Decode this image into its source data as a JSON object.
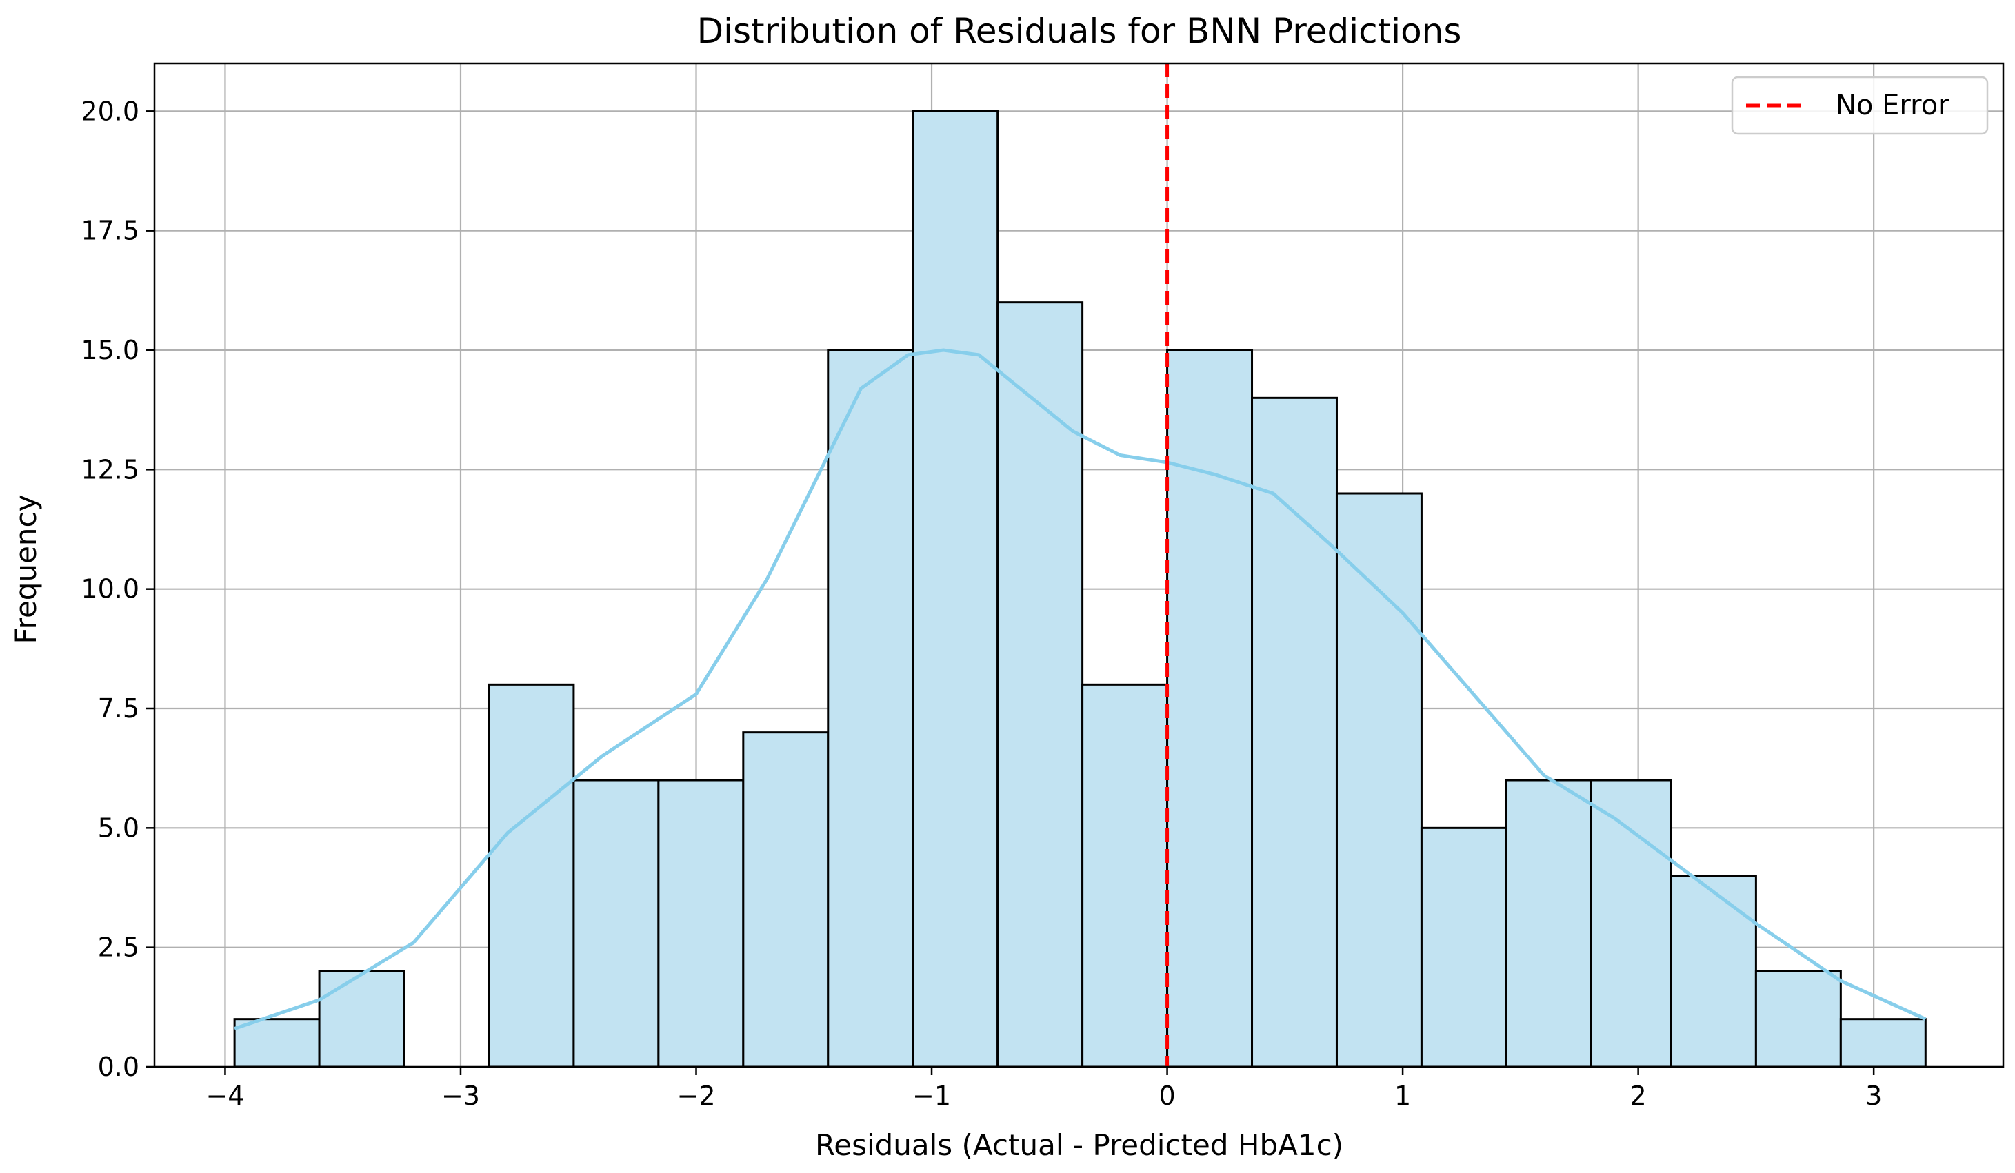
{
  "chart_data": {
    "type": "bar",
    "title": "Distribution of Residuals for BNN Predictions",
    "xlabel": "Residuals (Actual - Predicted HbA1c)",
    "ylabel": "Frequency",
    "xlim": [
      -4.3,
      3.55
    ],
    "ylim": [
      0,
      21.0
    ],
    "grid": true,
    "legend_position": "top-right",
    "xticks": [
      -4,
      -3,
      -2,
      -1,
      0,
      1,
      2,
      3
    ],
    "xtick_labels": [
      "−4",
      "−3",
      "−2",
      "−1",
      "0",
      "1",
      "2",
      "3"
    ],
    "yticks": [
      0,
      2.5,
      5,
      7.5,
      10,
      12.5,
      15,
      17.5,
      20
    ],
    "ytick_labels": [
      "0.0",
      "2.5",
      "5.0",
      "7.5",
      "10.0",
      "12.5",
      "15.0",
      "17.5",
      "20.0"
    ],
    "bin_edges": [
      -3.96,
      -3.6,
      -3.24,
      -2.88,
      -2.52,
      -2.16,
      -1.8,
      -1.44,
      -1.08,
      -0.72,
      -0.36,
      0.0,
      0.36,
      0.72,
      1.08,
      1.44,
      1.8,
      2.14,
      2.5,
      2.86,
      3.22
    ],
    "counts": [
      1,
      2,
      0,
      8,
      6,
      6,
      7,
      15,
      20,
      16,
      8,
      15,
      14,
      12,
      5,
      6,
      6,
      4,
      2,
      1
    ],
    "kde": {
      "x": [
        -3.96,
        -3.6,
        -3.2,
        -2.8,
        -2.4,
        -2.0,
        -1.7,
        -1.5,
        -1.3,
        -1.1,
        -0.95,
        -0.8,
        -0.6,
        -0.4,
        -0.2,
        0.0,
        0.2,
        0.45,
        0.7,
        1.0,
        1.3,
        1.6,
        1.9,
        2.2,
        2.5,
        2.86,
        3.22
      ],
      "y": [
        0.8,
        1.4,
        2.6,
        4.9,
        6.5,
        7.8,
        10.2,
        12.2,
        14.2,
        14.9,
        15.0,
        14.9,
        14.1,
        13.3,
        12.8,
        12.65,
        12.4,
        12.0,
        10.9,
        9.5,
        7.8,
        6.1,
        5.2,
        4.1,
        3.0,
        1.8,
        1.0
      ]
    },
    "series": [
      {
        "name": "No Error",
        "x_value": 0,
        "color": "#ff0000",
        "style": "dashed"
      }
    ],
    "colors": {
      "bar_fill": "#c2e3f2",
      "bar_edge": "#000000",
      "kde_line": "#87ceeb",
      "reference_line": "#ff0000",
      "grid": "#b0b0b0"
    }
  }
}
